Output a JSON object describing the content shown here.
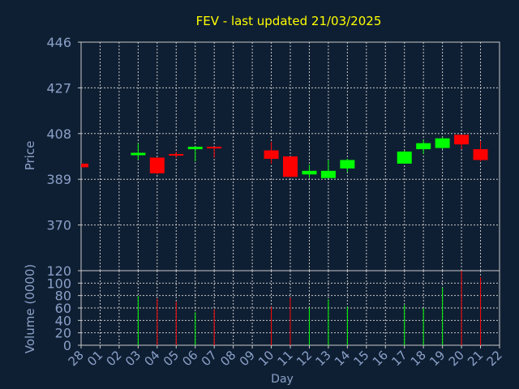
{
  "colors": {
    "background": "#0f1f33",
    "title": "#ffff00",
    "axis_text": "#8aa0c8",
    "grid": "#c8c8c8",
    "frame": "#c8c8c8",
    "up": "#00ff00",
    "down": "#ff0000"
  },
  "chart_data": [
    {
      "type": "candlestick",
      "title": "FEV - last updated 21/03/2025",
      "ylabel": "Price",
      "ylim": [
        351,
        446
      ],
      "yticks": [
        446,
        427,
        408,
        389,
        370
      ],
      "grid": true,
      "series": [
        {
          "values": [
            {
              "day": "28",
              "open": 395.5,
              "high": 395.5,
              "low": 394.0,
              "close": 394.0
            },
            {
              "day": "03",
              "open": 399.0,
              "high": 404.0,
              "low": 397.0,
              "close": 400.0
            },
            {
              "day": "04",
              "open": 398.0,
              "high": 398.0,
              "low": 391.0,
              "close": 391.5
            },
            {
              "day": "05",
              "open": 399.5,
              "high": 400.5,
              "low": 398.0,
              "close": 399.0
            },
            {
              "day": "06",
              "open": 401.5,
              "high": 402.5,
              "low": 396.5,
              "close": 402.5
            },
            {
              "day": "07",
              "open": 402.5,
              "high": 402.5,
              "low": 398.0,
              "close": 402.0
            },
            {
              "day": "10",
              "open": 401.0,
              "high": 404.5,
              "low": 395.5,
              "close": 397.5
            },
            {
              "day": "11",
              "open": 398.5,
              "high": 398.5,
              "low": 390.0,
              "close": 390.0
            },
            {
              "day": "12",
              "open": 391.0,
              "high": 395.0,
              "low": 389.5,
              "close": 392.5
            },
            {
              "day": "13",
              "open": 389.5,
              "high": 397.0,
              "low": 389.5,
              "close": 392.5
            },
            {
              "day": "14",
              "open": 393.5,
              "high": 397.5,
              "low": 392.0,
              "close": 397.0
            },
            {
              "day": "17",
              "open": 395.5,
              "high": 401.0,
              "low": 395.5,
              "close": 400.5
            },
            {
              "day": "18",
              "open": 401.5,
              "high": 405.5,
              "low": 399.5,
              "close": 404.0
            },
            {
              "day": "19",
              "open": 402.0,
              "high": 406.5,
              "low": 401.5,
              "close": 406.0
            },
            {
              "day": "20",
              "open": 407.5,
              "high": 407.5,
              "low": 401.5,
              "close": 403.5
            },
            {
              "day": "21",
              "open": 401.5,
              "high": 405.0,
              "low": 396.5,
              "close": 397.0
            }
          ]
        }
      ]
    },
    {
      "type": "bar",
      "ylabel": "Volume (0000)",
      "xlabel": "Day",
      "ylim": [
        0,
        120
      ],
      "yticks": [
        120,
        100,
        80,
        60,
        40,
        20,
        0
      ],
      "grid": true,
      "categories": [
        "28",
        "01",
        "02",
        "03",
        "04",
        "05",
        "06",
        "07",
        "08",
        "09",
        "10",
        "11",
        "12",
        "13",
        "14",
        "15",
        "16",
        "17",
        "18",
        "19",
        "20",
        "21",
        "22"
      ],
      "values": [
        {
          "day": "03",
          "volume": 79,
          "direction": "up"
        },
        {
          "day": "04",
          "volume": 75,
          "direction": "down"
        },
        {
          "day": "05",
          "volume": 70,
          "direction": "down"
        },
        {
          "day": "06",
          "volume": 53,
          "direction": "up"
        },
        {
          "day": "07",
          "volume": 58,
          "direction": "down"
        },
        {
          "day": "10",
          "volume": 62,
          "direction": "down"
        },
        {
          "day": "11",
          "volume": 77,
          "direction": "down"
        },
        {
          "day": "12",
          "volume": 61,
          "direction": "up"
        },
        {
          "day": "13",
          "volume": 74,
          "direction": "up"
        },
        {
          "day": "14",
          "volume": 62,
          "direction": "up"
        },
        {
          "day": "17",
          "volume": 65,
          "direction": "up"
        },
        {
          "day": "18",
          "volume": 60,
          "direction": "up"
        },
        {
          "day": "19",
          "volume": 93,
          "direction": "up"
        },
        {
          "day": "20",
          "volume": 120,
          "direction": "down"
        },
        {
          "day": "21",
          "volume": 110,
          "direction": "down"
        }
      ]
    }
  ]
}
